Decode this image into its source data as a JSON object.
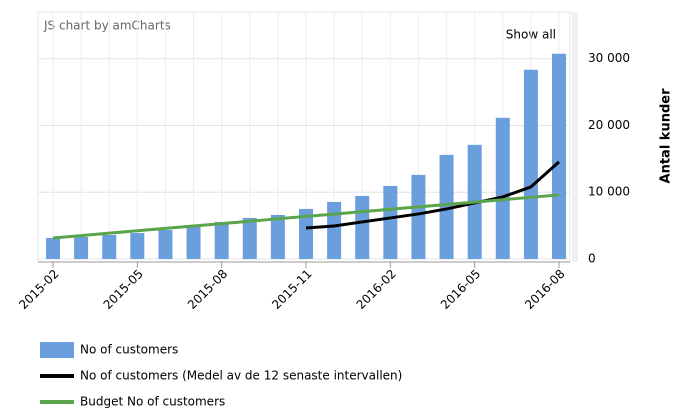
{
  "chart_data": {
    "type": "bar",
    "credit": "JS chart by amCharts",
    "button": "Show all",
    "y_axis_label": "Antal kunder",
    "categories": [
      "2015-02",
      null,
      null,
      "2015-05",
      null,
      null,
      "2015-08",
      null,
      null,
      "2015-11",
      null,
      null,
      "2016-02",
      null,
      null,
      "2016-05",
      null,
      null,
      "2016-08"
    ],
    "series": [
      {
        "name": "No of customers",
        "type": "bar",
        "color": "#6b9edc",
        "values": [
          3150,
          3300,
          3600,
          3900,
          4350,
          4800,
          5550,
          6150,
          6600,
          7500,
          8550,
          9450,
          10950,
          12600,
          15600,
          17100,
          21150,
          28350,
          30750
        ]
      },
      {
        "name": "No of customers (Medel av de 12 senaste intervallen)",
        "type": "line",
        "color": "#000000",
        "values": [
          null,
          null,
          null,
          null,
          null,
          null,
          null,
          null,
          null,
          4650,
          4950,
          5550,
          6150,
          6750,
          7500,
          8400,
          9300,
          10800,
          14550
        ]
      },
      {
        "name": "Budget No of customers",
        "type": "line",
        "color": "#5aa54b",
        "values": [
          3150,
          3510,
          3870,
          4230,
          4590,
          4950,
          5300,
          5660,
          6020,
          6380,
          6730,
          7090,
          7450,
          7810,
          8170,
          8520,
          8880,
          9240,
          9600
        ]
      }
    ],
    "ylim": [
      0,
      37000
    ],
    "yticks": [
      0,
      {
        "value": 10000,
        "label": "10 000"
      },
      {
        "value": 20000,
        "label": "20 000"
      },
      {
        "value": 30000,
        "label": "30 000"
      }
    ],
    "grid": true,
    "legend": "bottom"
  }
}
